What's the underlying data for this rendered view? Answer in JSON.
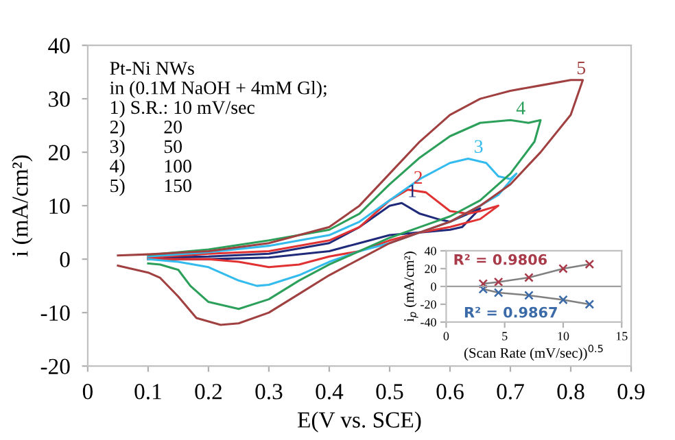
{
  "chart_data": [
    {
      "type": "line",
      "xlabel": "E(V vs. SCE)",
      "ylabel": "i (mA/cm²)",
      "xlim": [
        0,
        0.9
      ],
      "ylim": [
        -20,
        40
      ],
      "xticks": [
        0,
        0.1,
        0.2,
        0.3,
        0.4,
        0.5,
        0.6,
        0.7,
        0.8,
        0.9
      ],
      "yticks": [
        -20,
        -10,
        0,
        10,
        20,
        30,
        40
      ],
      "grid": false,
      "legend": false,
      "line_style": "solid",
      "annotations": [
        "Pt-Ni NWs",
        "in (0.1M NaOH + 4mM Gl);",
        "1) S.R.: 10 mV/sec",
        "2)        20",
        "3)        50",
        "4)        100",
        "5)        150"
      ],
      "series": [
        {
          "name": "1",
          "color": "#1f2a7a",
          "x": [
            0.1,
            0.2,
            0.3,
            0.4,
            0.45,
            0.5,
            0.52,
            0.55,
            0.58,
            0.6,
            0.63,
            0.65,
            0.62,
            0.6,
            0.55,
            0.5,
            0.45,
            0.4,
            0.3,
            0.2,
            0.1
          ],
          "values": [
            0.3,
            0.5,
            1,
            3,
            6,
            10,
            10.5,
            8.5,
            7.5,
            7,
            8.5,
            9.5,
            6,
            5.5,
            5,
            4.5,
            3,
            1.5,
            0.3,
            0,
            0
          ]
        },
        {
          "name": "2",
          "color": "#e03232",
          "x": [
            0.1,
            0.2,
            0.3,
            0.4,
            0.45,
            0.5,
            0.53,
            0.56,
            0.6,
            0.63,
            0.65,
            0.68,
            0.65,
            0.6,
            0.55,
            0.5,
            0.45,
            0.4,
            0.35,
            0.3,
            0.25,
            0.2,
            0.1
          ],
          "values": [
            0.3,
            1,
            1.5,
            3.5,
            6,
            11,
            13,
            12.5,
            9,
            8.5,
            9,
            10,
            7.5,
            6,
            5,
            3.5,
            1.5,
            0.5,
            -1,
            -1.5,
            -0.5,
            0,
            0
          ]
        },
        {
          "name": "3",
          "color": "#33bbee",
          "x": [
            0.1,
            0.2,
            0.3,
            0.4,
            0.45,
            0.5,
            0.55,
            0.6,
            0.63,
            0.66,
            0.68,
            0.7,
            0.71,
            0.68,
            0.65,
            0.6,
            0.55,
            0.5,
            0.45,
            0.4,
            0.35,
            0.3,
            0.28,
            0.25,
            0.2,
            0.15,
            0.1
          ],
          "values": [
            0.5,
            1.3,
            2.5,
            4.5,
            7,
            11,
            15,
            18,
            18.8,
            18,
            15.5,
            15,
            16,
            12,
            10,
            7,
            5,
            3,
            1.5,
            -0.5,
            -3,
            -4.8,
            -5,
            -4,
            -1.5,
            -0.5,
            0
          ]
        },
        {
          "name": "4",
          "color": "#2ca05a",
          "x": [
            0.1,
            0.2,
            0.3,
            0.4,
            0.45,
            0.5,
            0.55,
            0.6,
            0.65,
            0.7,
            0.73,
            0.75,
            0.74,
            0.7,
            0.65,
            0.6,
            0.55,
            0.5,
            0.45,
            0.4,
            0.35,
            0.3,
            0.25,
            0.2,
            0.17,
            0.15,
            0.12,
            0.1
          ],
          "values": [
            0.8,
            1.8,
            3.5,
            5.5,
            8.5,
            14,
            19,
            23,
            25.5,
            26,
            25.5,
            26,
            22,
            16,
            11,
            8,
            6,
            4,
            1.5,
            -1,
            -4,
            -7.5,
            -9.3,
            -8,
            -5,
            -2,
            -1,
            -0.8
          ]
        },
        {
          "name": "5",
          "color": "#a04040",
          "x": [
            0.05,
            0.1,
            0.2,
            0.3,
            0.4,
            0.45,
            0.5,
            0.55,
            0.6,
            0.65,
            0.7,
            0.75,
            0.8,
            0.82,
            0.8,
            0.75,
            0.7,
            0.65,
            0.6,
            0.55,
            0.5,
            0.45,
            0.4,
            0.35,
            0.3,
            0.25,
            0.22,
            0.18,
            0.15,
            0.12,
            0.1,
            0.05
          ],
          "values": [
            0.7,
            0.9,
            1.5,
            3,
            6,
            10,
            16,
            22,
            27,
            30,
            31.5,
            32.5,
            33.5,
            33.5,
            27,
            20,
            14,
            10,
            7,
            5,
            3,
            0,
            -3,
            -6.5,
            -10,
            -12,
            -12.3,
            -11,
            -7,
            -3.5,
            -2.5,
            -1.2
          ]
        }
      ]
    },
    {
      "type": "line",
      "xlabel": "(Scan Rate (mV/sec))$^{0.5}$",
      "ylabel": "i$_{p}$ (mA/cm²)",
      "xlim": [
        0,
        15
      ],
      "ylim": [
        -40,
        40
      ],
      "xticks": [
        0,
        5,
        10,
        15
      ],
      "yticks": [
        -40,
        -20,
        0,
        20,
        40
      ],
      "grid": false,
      "legend": false,
      "marker": "cross",
      "line_style": "solid",
      "ref_lines": [
        {
          "axis": "y",
          "value": 0,
          "color": "#a0a0a0"
        }
      ],
      "series": [
        {
          "name": "R² = 0.9806",
          "color": "#a83a4a",
          "x": [
            3.16,
            4.47,
            7.07,
            10,
            12.25
          ],
          "values": [
            3,
            5,
            10,
            20,
            25
          ]
        },
        {
          "name": "R² = 0.9867",
          "color": "#3a6aa8",
          "x": [
            3.16,
            4.47,
            7.07,
            10,
            12.25
          ],
          "values": [
            -3,
            -7,
            -10,
            -15,
            -20
          ]
        }
      ]
    }
  ]
}
